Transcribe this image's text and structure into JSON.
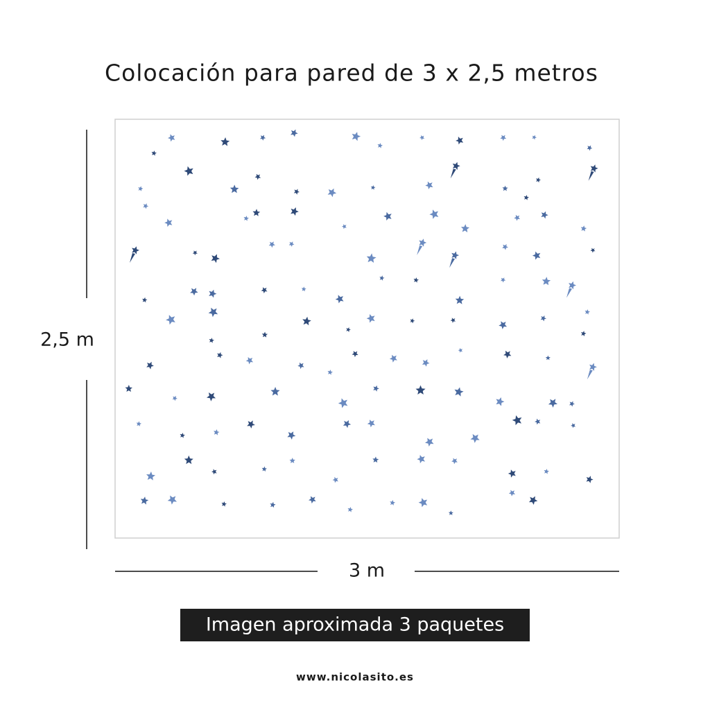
{
  "header": {
    "title": "Colocación para pared de 3 x 2,5 metros"
  },
  "dimensions": {
    "height": "2,5 m",
    "width": "3 m"
  },
  "banner": {
    "text": "Imagen aproximada 3 paquetes"
  },
  "footer": {
    "url": "www.nicolasito.es"
  }
}
